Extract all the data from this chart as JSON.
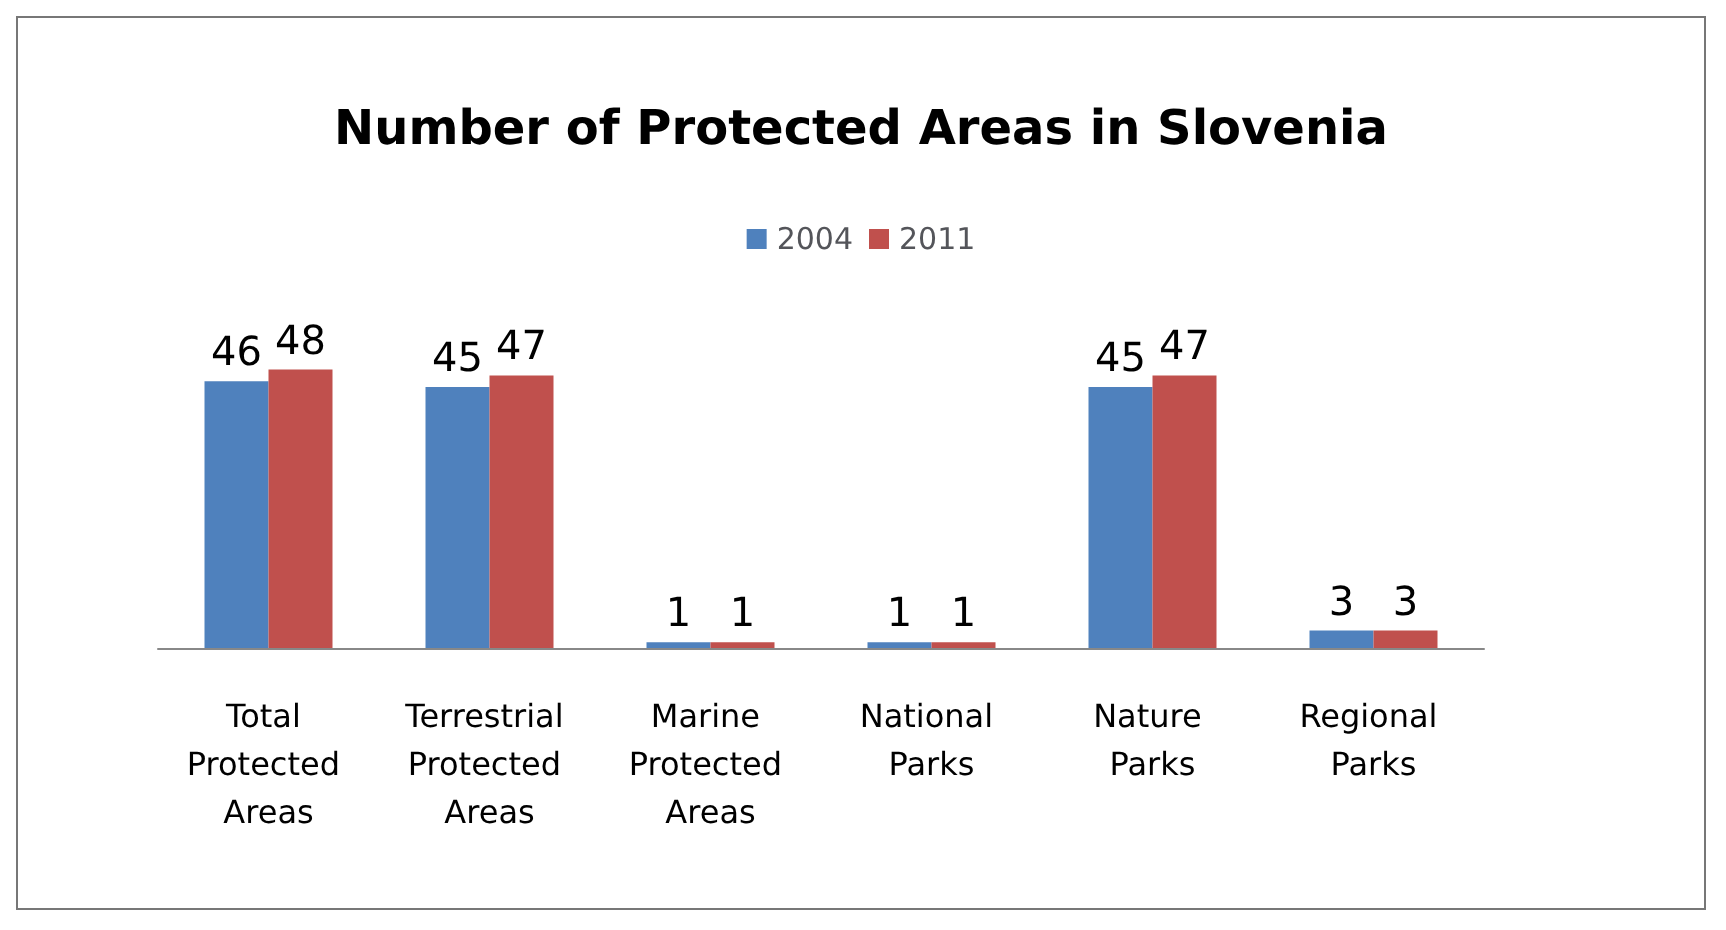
{
  "chart_data": {
    "type": "bar",
    "title": "Number of Protected Areas in Slovenia",
    "categories": [
      "Total Protected Areas",
      "Terrestrial Protected Areas",
      "Marine Protected Areas",
      "National Parks",
      "Nature Parks",
      "Regional Parks"
    ],
    "series": [
      {
        "name": "2004",
        "color": "#4f81bd",
        "values": [
          46,
          45,
          1,
          1,
          45,
          3
        ]
      },
      {
        "name": "2011",
        "color": "#c0504d",
        "values": [
          48,
          47,
          1,
          1,
          47,
          3
        ]
      }
    ],
    "data_labels": true,
    "grid": false,
    "legend": "top"
  }
}
